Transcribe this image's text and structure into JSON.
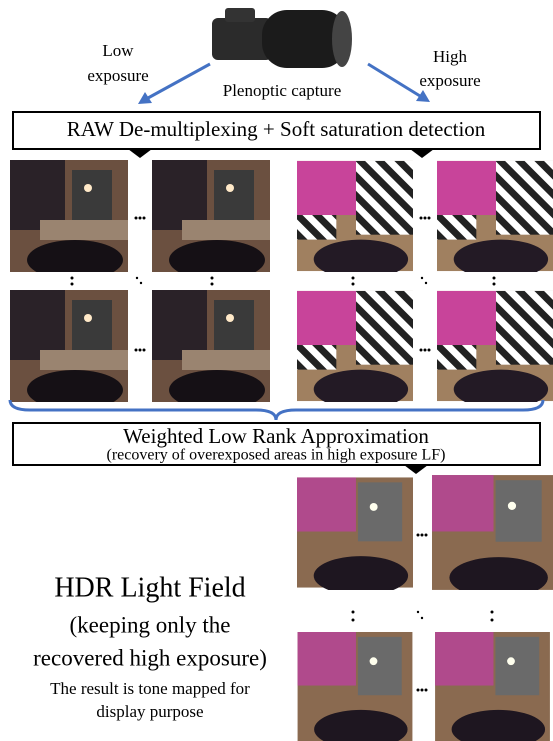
{
  "capture": {
    "low_label": [
      "Low",
      "exposure"
    ],
    "high_label": [
      "High",
      "exposure"
    ],
    "caption": "Plenoptic capture"
  },
  "step1": {
    "label": "RAW De-multiplexing + Soft saturation detection"
  },
  "step2": {
    "label": "Weighted Low Rank Approximation",
    "sublabel": "(recovery of overexposed areas in high exposure LF)"
  },
  "result": {
    "title": "HDR Light Field",
    "lines": [
      "(keeping only the",
      "recovered high exposure)"
    ],
    "note": [
      "The result is tone mapped for",
      "display purpose"
    ]
  }
}
